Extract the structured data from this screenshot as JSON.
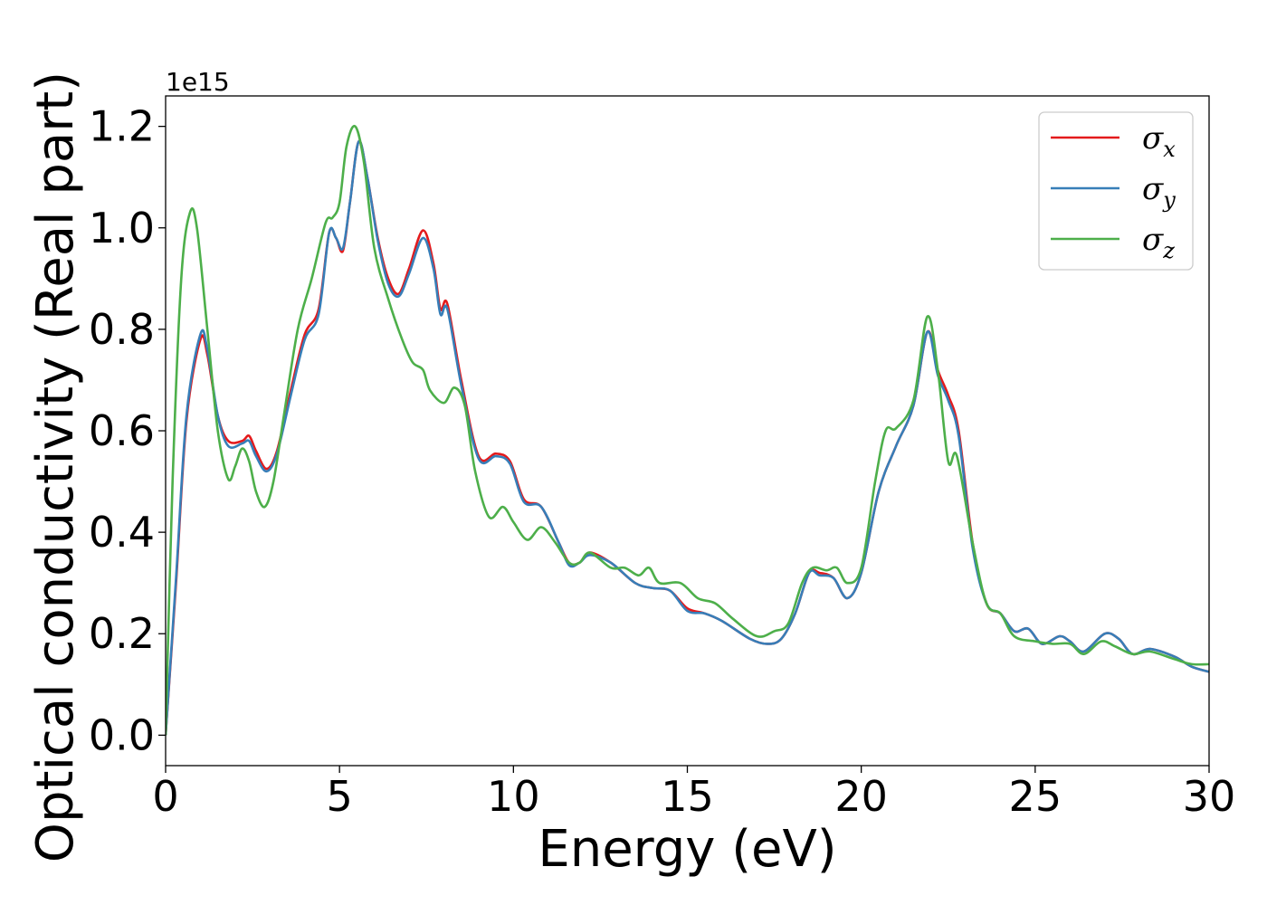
{
  "chart_data": {
    "type": "line",
    "title": "",
    "xlabel": "Energy (eV)",
    "ylabel": "Optical conductivity (Real part)",
    "y_offset_label": "1e15",
    "xlim": [
      0,
      30
    ],
    "ylim": [
      -0.06,
      1.26
    ],
    "x_ticks": [
      0,
      5,
      10,
      15,
      20,
      25,
      30
    ],
    "x_tick_labels": [
      "0",
      "5",
      "10",
      "15",
      "20",
      "25",
      "30"
    ],
    "y_ticks": [
      0.0,
      0.2,
      0.4,
      0.6,
      0.8,
      1.0,
      1.2
    ],
    "y_tick_labels": [
      "0.0",
      "0.2",
      "0.4",
      "0.6",
      "0.8",
      "1.0",
      "1.2"
    ],
    "grid": false,
    "legend_position": "top-right",
    "series": [
      {
        "name": "σx",
        "legend_base": "σ",
        "legend_sub": "x",
        "color": "#e41a1c",
        "points": [
          [
            0,
            0.0
          ],
          [
            0.3,
            0.3
          ],
          [
            0.6,
            0.62
          ],
          [
            1.0,
            0.78
          ],
          [
            1.2,
            0.75
          ],
          [
            1.5,
            0.63
          ],
          [
            1.8,
            0.58
          ],
          [
            2.2,
            0.58
          ],
          [
            2.4,
            0.59
          ],
          [
            2.6,
            0.56
          ],
          [
            2.9,
            0.525
          ],
          [
            3.2,
            0.56
          ],
          [
            3.6,
            0.68
          ],
          [
            4.0,
            0.79
          ],
          [
            4.4,
            0.84
          ],
          [
            4.7,
            0.99
          ],
          [
            4.9,
            0.98
          ],
          [
            5.1,
            0.955
          ],
          [
            5.3,
            1.05
          ],
          [
            5.55,
            1.17
          ],
          [
            5.8,
            1.1
          ],
          [
            6.1,
            0.98
          ],
          [
            6.4,
            0.9
          ],
          [
            6.7,
            0.87
          ],
          [
            7.0,
            0.92
          ],
          [
            7.4,
            0.995
          ],
          [
            7.7,
            0.93
          ],
          [
            7.9,
            0.84
          ],
          [
            8.1,
            0.85
          ],
          [
            8.5,
            0.7
          ],
          [
            9.0,
            0.55
          ],
          [
            9.5,
            0.555
          ],
          [
            9.9,
            0.54
          ],
          [
            10.3,
            0.465
          ],
          [
            10.8,
            0.45
          ],
          [
            11.3,
            0.38
          ],
          [
            11.6,
            0.34
          ],
          [
            11.9,
            0.34
          ],
          [
            12.2,
            0.36
          ],
          [
            12.8,
            0.34
          ],
          [
            13.5,
            0.3
          ],
          [
            14.0,
            0.29
          ],
          [
            14.5,
            0.285
          ],
          [
            15.0,
            0.25
          ],
          [
            15.5,
            0.24
          ],
          [
            16.0,
            0.225
          ],
          [
            16.8,
            0.19
          ],
          [
            17.3,
            0.18
          ],
          [
            17.7,
            0.19
          ],
          [
            18.1,
            0.24
          ],
          [
            18.5,
            0.32
          ],
          [
            18.8,
            0.32
          ],
          [
            19.2,
            0.31
          ],
          [
            19.6,
            0.27
          ],
          [
            20.0,
            0.32
          ],
          [
            20.5,
            0.48
          ],
          [
            21.0,
            0.57
          ],
          [
            21.5,
            0.65
          ],
          [
            21.9,
            0.795
          ],
          [
            22.2,
            0.72
          ],
          [
            22.5,
            0.67
          ],
          [
            22.8,
            0.6
          ],
          [
            23.2,
            0.38
          ],
          [
            23.6,
            0.26
          ],
          [
            24.0,
            0.24
          ],
          [
            24.4,
            0.205
          ],
          [
            24.8,
            0.21
          ],
          [
            25.2,
            0.18
          ],
          [
            25.7,
            0.195
          ],
          [
            26.0,
            0.185
          ],
          [
            26.4,
            0.165
          ],
          [
            27.0,
            0.2
          ],
          [
            27.4,
            0.19
          ],
          [
            27.8,
            0.16
          ],
          [
            28.3,
            0.17
          ],
          [
            29.0,
            0.155
          ],
          [
            29.5,
            0.135
          ],
          [
            30.0,
            0.125
          ]
        ]
      },
      {
        "name": "σy",
        "legend_base": "σ",
        "legend_sub": "y",
        "color": "#377eb8",
        "points": [
          [
            0,
            0.0
          ],
          [
            0.3,
            0.31
          ],
          [
            0.6,
            0.63
          ],
          [
            1.0,
            0.79
          ],
          [
            1.2,
            0.76
          ],
          [
            1.5,
            0.63
          ],
          [
            1.8,
            0.57
          ],
          [
            2.2,
            0.575
          ],
          [
            2.4,
            0.58
          ],
          [
            2.6,
            0.55
          ],
          [
            2.9,
            0.52
          ],
          [
            3.2,
            0.555
          ],
          [
            3.6,
            0.67
          ],
          [
            4.0,
            0.78
          ],
          [
            4.4,
            0.83
          ],
          [
            4.7,
            0.99
          ],
          [
            4.9,
            0.98
          ],
          [
            5.1,
            0.96
          ],
          [
            5.3,
            1.05
          ],
          [
            5.55,
            1.17
          ],
          [
            5.8,
            1.1
          ],
          [
            6.1,
            0.975
          ],
          [
            6.4,
            0.89
          ],
          [
            6.7,
            0.865
          ],
          [
            7.0,
            0.91
          ],
          [
            7.4,
            0.98
          ],
          [
            7.7,
            0.92
          ],
          [
            7.9,
            0.83
          ],
          [
            8.1,
            0.84
          ],
          [
            8.5,
            0.69
          ],
          [
            9.0,
            0.545
          ],
          [
            9.5,
            0.55
          ],
          [
            9.9,
            0.535
          ],
          [
            10.3,
            0.46
          ],
          [
            10.8,
            0.45
          ],
          [
            11.3,
            0.38
          ],
          [
            11.6,
            0.335
          ],
          [
            11.9,
            0.34
          ],
          [
            12.2,
            0.355
          ],
          [
            12.8,
            0.34
          ],
          [
            13.5,
            0.3
          ],
          [
            14.0,
            0.29
          ],
          [
            14.5,
            0.285
          ],
          [
            15.0,
            0.245
          ],
          [
            15.5,
            0.24
          ],
          [
            16.0,
            0.225
          ],
          [
            16.8,
            0.19
          ],
          [
            17.3,
            0.18
          ],
          [
            17.7,
            0.19
          ],
          [
            18.1,
            0.24
          ],
          [
            18.5,
            0.32
          ],
          [
            18.8,
            0.315
          ],
          [
            19.2,
            0.31
          ],
          [
            19.6,
            0.27
          ],
          [
            20.0,
            0.32
          ],
          [
            20.5,
            0.48
          ],
          [
            21.0,
            0.57
          ],
          [
            21.5,
            0.65
          ],
          [
            21.9,
            0.795
          ],
          [
            22.2,
            0.71
          ],
          [
            22.5,
            0.66
          ],
          [
            22.8,
            0.59
          ],
          [
            23.2,
            0.37
          ],
          [
            23.6,
            0.26
          ],
          [
            24.0,
            0.24
          ],
          [
            24.4,
            0.205
          ],
          [
            24.8,
            0.21
          ],
          [
            25.2,
            0.18
          ],
          [
            25.7,
            0.195
          ],
          [
            26.0,
            0.185
          ],
          [
            26.4,
            0.165
          ],
          [
            27.0,
            0.2
          ],
          [
            27.4,
            0.19
          ],
          [
            27.8,
            0.16
          ],
          [
            28.3,
            0.17
          ],
          [
            29.0,
            0.155
          ],
          [
            29.5,
            0.135
          ],
          [
            30.0,
            0.125
          ]
        ]
      },
      {
        "name": "σz",
        "legend_base": "σ",
        "legend_sub": "z",
        "color": "#4daf4a",
        "points": [
          [
            0,
            0.0
          ],
          [
            0.2,
            0.5
          ],
          [
            0.45,
            0.9
          ],
          [
            0.7,
            1.03
          ],
          [
            0.9,
            1.0
          ],
          [
            1.2,
            0.8
          ],
          [
            1.5,
            0.6
          ],
          [
            1.8,
            0.505
          ],
          [
            2.0,
            0.53
          ],
          [
            2.2,
            0.565
          ],
          [
            2.4,
            0.54
          ],
          [
            2.6,
            0.48
          ],
          [
            2.85,
            0.45
          ],
          [
            3.1,
            0.5
          ],
          [
            3.4,
            0.63
          ],
          [
            3.8,
            0.8
          ],
          [
            4.2,
            0.9
          ],
          [
            4.6,
            1.01
          ],
          [
            4.8,
            1.02
          ],
          [
            5.0,
            1.05
          ],
          [
            5.2,
            1.16
          ],
          [
            5.45,
            1.2
          ],
          [
            5.7,
            1.13
          ],
          [
            6.0,
            0.96
          ],
          [
            6.4,
            0.86
          ],
          [
            6.8,
            0.78
          ],
          [
            7.1,
            0.735
          ],
          [
            7.4,
            0.72
          ],
          [
            7.6,
            0.68
          ],
          [
            8.0,
            0.655
          ],
          [
            8.3,
            0.685
          ],
          [
            8.6,
            0.65
          ],
          [
            8.9,
            0.52
          ],
          [
            9.3,
            0.43
          ],
          [
            9.7,
            0.45
          ],
          [
            10.0,
            0.42
          ],
          [
            10.4,
            0.385
          ],
          [
            10.8,
            0.41
          ],
          [
            11.2,
            0.38
          ],
          [
            11.6,
            0.34
          ],
          [
            11.9,
            0.34
          ],
          [
            12.2,
            0.36
          ],
          [
            12.8,
            0.33
          ],
          [
            13.2,
            0.33
          ],
          [
            13.6,
            0.315
          ],
          [
            13.9,
            0.33
          ],
          [
            14.2,
            0.3
          ],
          [
            14.8,
            0.3
          ],
          [
            15.3,
            0.27
          ],
          [
            15.8,
            0.26
          ],
          [
            16.3,
            0.23
          ],
          [
            17.0,
            0.195
          ],
          [
            17.5,
            0.205
          ],
          [
            17.9,
            0.22
          ],
          [
            18.3,
            0.3
          ],
          [
            18.6,
            0.33
          ],
          [
            19.0,
            0.325
          ],
          [
            19.3,
            0.33
          ],
          [
            19.6,
            0.3
          ],
          [
            20.0,
            0.33
          ],
          [
            20.4,
            0.5
          ],
          [
            20.7,
            0.6
          ],
          [
            21.0,
            0.605
          ],
          [
            21.5,
            0.66
          ],
          [
            21.9,
            0.825
          ],
          [
            22.2,
            0.72
          ],
          [
            22.5,
            0.54
          ],
          [
            22.75,
            0.55
          ],
          [
            23.2,
            0.38
          ],
          [
            23.6,
            0.26
          ],
          [
            24.0,
            0.24
          ],
          [
            24.4,
            0.195
          ],
          [
            25.0,
            0.185
          ],
          [
            25.5,
            0.18
          ],
          [
            26.0,
            0.18
          ],
          [
            26.4,
            0.16
          ],
          [
            26.9,
            0.185
          ],
          [
            27.3,
            0.175
          ],
          [
            27.8,
            0.16
          ],
          [
            28.3,
            0.165
          ],
          [
            29.0,
            0.15
          ],
          [
            29.5,
            0.14
          ],
          [
            30.0,
            0.14
          ]
        ]
      }
    ]
  }
}
